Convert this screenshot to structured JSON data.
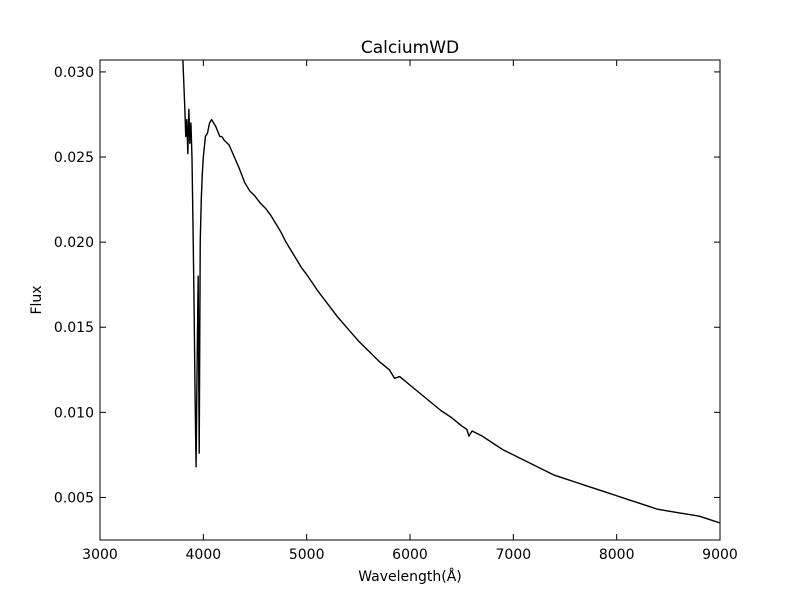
{
  "chart_data": {
    "type": "line",
    "title": "CalciumWD",
    "xlabel": "Wavelength(Å)",
    "ylabel": "Flux",
    "xlim": [
      3000,
      9000
    ],
    "ylim": [
      0.0025,
      0.0307
    ],
    "xticks": [
      3000,
      4000,
      5000,
      6000,
      7000,
      8000,
      9000
    ],
    "xtick_labels": [
      "3000",
      "4000",
      "5000",
      "6000",
      "7000",
      "8000",
      "9000"
    ],
    "yticks": [
      0.005,
      0.01,
      0.015,
      0.02,
      0.025,
      0.03
    ],
    "ytick_labels": [
      "0.005",
      "0.010",
      "0.015",
      "0.020",
      "0.025",
      "0.030"
    ],
    "grid": false,
    "series": [
      {
        "color": "#000000",
        "x": [
          3800,
          3810,
          3820,
          3830,
          3840,
          3850,
          3860,
          3870,
          3880,
          3890,
          3900,
          3910,
          3920,
          3930,
          3940,
          3950,
          3960,
          3970,
          3980,
          3990,
          4000,
          4020,
          4040,
          4060,
          4080,
          4100,
          4120,
          4140,
          4160,
          4180,
          4200,
          4250,
          4300,
          4350,
          4400,
          4450,
          4500,
          4550,
          4600,
          4650,
          4700,
          4750,
          4800,
          4850,
          4900,
          4950,
          5000,
          5100,
          5200,
          5300,
          5400,
          5500,
          5600,
          5700,
          5800,
          5850,
          5900,
          6000,
          6100,
          6200,
          6300,
          6400,
          6500,
          6550,
          6570,
          6600,
          6700,
          6800,
          6900,
          7000,
          7100,
          7200,
          7300,
          7400,
          7500,
          7600,
          7700,
          7800,
          7900,
          8000,
          8100,
          8200,
          8300,
          8400,
          8500,
          8600,
          8700,
          8800,
          8900,
          9000
        ],
        "y": [
          0.031,
          0.0295,
          0.028,
          0.0262,
          0.0272,
          0.0252,
          0.0278,
          0.0258,
          0.027,
          0.025,
          0.021,
          0.0165,
          0.011,
          0.0068,
          0.013,
          0.018,
          0.0076,
          0.02,
          0.0225,
          0.024,
          0.025,
          0.0262,
          0.0264,
          0.027,
          0.0272,
          0.027,
          0.0268,
          0.0265,
          0.0262,
          0.0262,
          0.026,
          0.0257,
          0.025,
          0.0243,
          0.0235,
          0.023,
          0.0227,
          0.0223,
          0.022,
          0.0216,
          0.0211,
          0.0206,
          0.02,
          0.0195,
          0.019,
          0.0185,
          0.0181,
          0.0172,
          0.0164,
          0.0156,
          0.0149,
          0.0142,
          0.0136,
          0.013,
          0.0125,
          0.012,
          0.0121,
          0.0116,
          0.0111,
          0.0106,
          0.0101,
          0.0097,
          0.0092,
          0.009,
          0.0086,
          0.0089,
          0.0086,
          0.0082,
          0.0078,
          0.0075,
          0.0072,
          0.0069,
          0.0066,
          0.0063,
          0.0061,
          0.0059,
          0.0057,
          0.0055,
          0.0053,
          0.0051,
          0.0049,
          0.0047,
          0.0045,
          0.0043,
          0.0042,
          0.0041,
          0.004,
          0.0039,
          0.0037,
          0.0035
        ]
      }
    ]
  }
}
